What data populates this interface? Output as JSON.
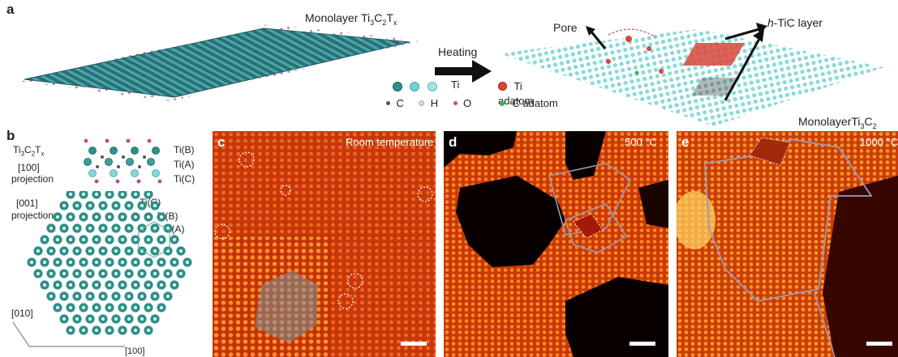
{
  "panel_a": {
    "letter": "a",
    "left_title_main": "Monolayer Ti",
    "left_title_sub1": "3",
    "left_title_mid": "C",
    "left_title_sub2": "2",
    "left_title_t": "T",
    "left_title_sub3": "x",
    "arrow_label": "Heating",
    "pore_label": "Pore",
    "htic_prefix": "h",
    "htic_label": "-TiC layer",
    "right_title_main": "MonolayerTi",
    "right_title_sub1": "3",
    "right_title_mid": "C",
    "right_title_sub2": "2",
    "legend": {
      "ti": "Ti",
      "c": "C",
      "h": "H",
      "o": "O",
      "ti_adatom": "Ti adatom",
      "c_adatom": "C adatom"
    }
  },
  "panel_b": {
    "letter": "b",
    "formula_main": "Ti",
    "formula_sub1": "3",
    "formula_mid": "C",
    "formula_sub2": "2",
    "formula_t": "T",
    "formula_sub3": "x",
    "proj100": "[100]",
    "projection": "projection",
    "tiB": "Ti(B)",
    "tiA": "Ti(A)",
    "tiC": "Ti(C)",
    "proj001": "[001]",
    "axis010": "[010]",
    "axis100": "[100]"
  },
  "panel_c": {
    "letter": "c",
    "caption": "Room temperature"
  },
  "panel_d": {
    "letter": "d",
    "caption": "500 °C"
  },
  "panel_e": {
    "letter": "e",
    "caption": "1000 °C"
  },
  "colors": {
    "teal": "#2f8f8a",
    "light_teal": "#6fd3cf",
    "magenta": "#c2478f",
    "red_adatom": "#d9463b",
    "green_adatom": "#3bb35a",
    "stem_bg": "#c0300a",
    "stem_bright": "#ff8a1c",
    "boundary": "#9a9ab5"
  }
}
